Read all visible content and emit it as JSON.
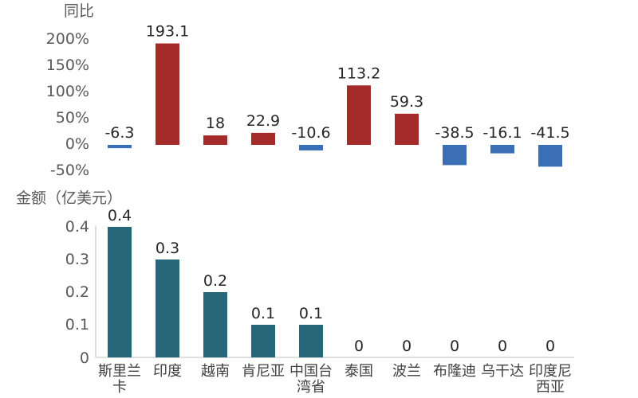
{
  "chart_data": [
    {
      "type": "bar",
      "ylabel": "同比",
      "categories": [
        "斯里兰卡",
        "印度",
        "越南",
        "肯尼亚",
        "中国台湾省",
        "泰国",
        "波兰",
        "布隆迪",
        "乌干达",
        "印度尼西亚"
      ],
      "values": [
        -6.3,
        193.1,
        18,
        22.9,
        -10.6,
        113.2,
        59.3,
        -38.5,
        -16.1,
        -41.5
      ],
      "value_labels": [
        "-6.3",
        "193.1",
        "18",
        "22.9",
        "-10.6",
        "113.2",
        "59.3",
        "-38.5",
        "-16.1",
        "-41.5"
      ],
      "yticks": [
        "200%",
        "150%",
        "100%",
        "50%",
        "0%",
        "-50%"
      ],
      "ylim": [
        -50,
        200
      ],
      "colors": {
        "positive": "#A52A2A",
        "negative": "#3A6FB5"
      }
    },
    {
      "type": "bar",
      "ylabel": "金额（亿美元）",
      "categories": [
        "斯里兰卡",
        "印度",
        "越南",
        "肯尼亚",
        "中国台湾省",
        "泰国",
        "波兰",
        "布隆迪",
        "乌干达",
        "印度尼西亚"
      ],
      "category_labels": [
        [
          "斯里兰",
          "卡"
        ],
        [
          "印度"
        ],
        [
          "越南"
        ],
        [
          "肯尼亚"
        ],
        [
          "中国台",
          "湾省"
        ],
        [
          "泰国"
        ],
        [
          "波兰"
        ],
        [
          "布隆迪"
        ],
        [
          "乌干达"
        ],
        [
          "印度尼",
          "西亚"
        ]
      ],
      "values": [
        0.4,
        0.3,
        0.2,
        0.1,
        0.1,
        0,
        0,
        0,
        0,
        0
      ],
      "value_labels": [
        "0.4",
        "0.3",
        "0.2",
        "0.1",
        "0.1",
        "0",
        "0",
        "0",
        "0",
        "0"
      ],
      "yticks": [
        "0.4",
        "0.3",
        "0.2",
        "0.1",
        "0"
      ],
      "ylim": [
        0,
        0.4
      ],
      "colors": {
        "bar": "#26687A"
      }
    }
  ]
}
